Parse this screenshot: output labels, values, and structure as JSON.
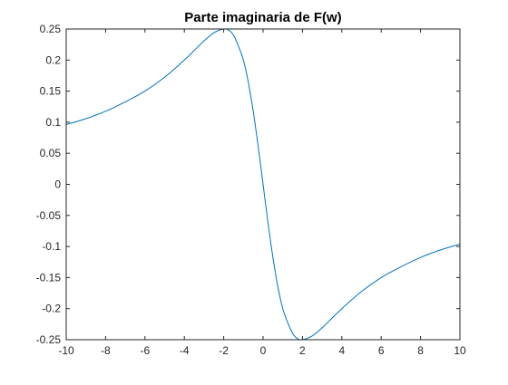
{
  "chart_data": {
    "type": "line",
    "title": "Parte imaginaria de F(w)",
    "xlabel": "",
    "ylabel": "",
    "xlim": [
      -10,
      10
    ],
    "ylim": [
      -0.25,
      0.25
    ],
    "grid": false,
    "legend": "none",
    "xticks": [
      -10,
      -8,
      -6,
      -4,
      -2,
      0,
      2,
      4,
      6,
      8,
      10
    ],
    "xtick_labels": [
      "-10",
      "-8",
      "-6",
      "-4",
      "-2",
      "0",
      "2",
      "4",
      "6",
      "8",
      "10"
    ],
    "yticks": [
      -0.25,
      -0.2,
      -0.15,
      -0.1,
      -0.05,
      0,
      0.05,
      0.1,
      0.15,
      0.2,
      0.25
    ],
    "ytick_labels": [
      "-0.25",
      "-0.2",
      "-0.15",
      "-0.1",
      "-0.05",
      "0",
      "0.05",
      "0.1",
      "0.15",
      "0.2",
      "0.25"
    ],
    "series": [
      {
        "color": "#0072bd",
        "x": [
          -10,
          -9,
          -8,
          -7,
          -6,
          -5,
          -4,
          -3.5,
          -3,
          -2.5,
          -2,
          -1.75,
          -1.5,
          -1.25,
          -1,
          -0.75,
          -0.5,
          -0.25,
          0,
          0.25,
          0.5,
          0.75,
          1,
          1.25,
          1.5,
          1.75,
          2,
          2.5,
          3,
          3.5,
          4,
          5,
          6,
          7,
          8,
          9,
          10
        ],
        "y": [
          0.0962,
          0.1057,
          0.1176,
          0.1327,
          0.15,
          0.1724,
          0.2,
          0.2154,
          0.2308,
          0.2439,
          0.25,
          0.2483,
          0.24,
          0.2222,
          0.2,
          0.1644,
          0.1176,
          0.0615,
          0,
          -0.0615,
          -0.1176,
          -0.1644,
          -0.2,
          -0.2222,
          -0.24,
          -0.2483,
          -0.25,
          -0.2439,
          -0.2308,
          -0.2154,
          -0.2,
          -0.1724,
          -0.15,
          -0.1327,
          -0.1176,
          -0.1057,
          -0.0962
        ]
      }
    ]
  }
}
